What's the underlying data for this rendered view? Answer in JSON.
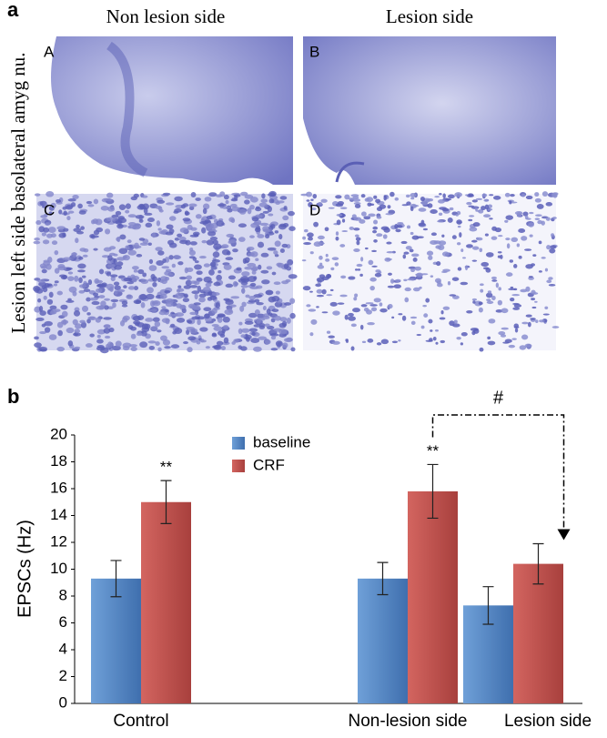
{
  "figure": {
    "panel_labels": [
      "a",
      "b"
    ],
    "column_titles": [
      "Non lesion side",
      "Lesion side"
    ],
    "row_title": "Lesion left side basolateral amyg nu.",
    "image_labels": [
      "A",
      "B",
      "C",
      "D"
    ]
  },
  "chart_data": {
    "type": "bar",
    "y_label": "EPSCs (Hz)",
    "categories": [
      "Control",
      "Non-lesion side",
      "Lesion side"
    ],
    "series": [
      {
        "name": "baseline",
        "color": "#4f81bd",
        "values": [
          9.3,
          9.3,
          7.3
        ],
        "errors": [
          1.35,
          1.2,
          1.4
        ]
      },
      {
        "name": "CRF",
        "color": "#c0504d",
        "values": [
          15.0,
          15.8,
          10.4
        ],
        "errors": [
          1.6,
          2.0,
          1.5
        ]
      }
    ],
    "ylim": [
      0,
      20
    ],
    "yticks": [
      0,
      2,
      4,
      6,
      8,
      10,
      12,
      14,
      16,
      18,
      20
    ],
    "grid": false,
    "legend": "top",
    "annotations": [
      "**",
      "**",
      "#"
    ]
  }
}
